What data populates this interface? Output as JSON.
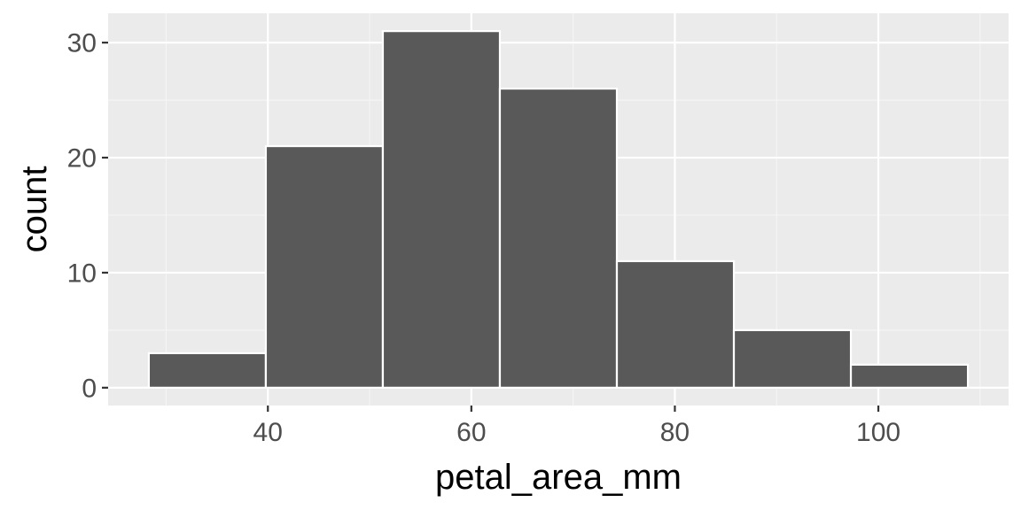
{
  "colors": {
    "panel_background": "#ebebeb",
    "grid_major": "#ffffff",
    "grid_minor": "#f5f5f5",
    "bar_fill": "#595959",
    "bar_outline": "#ffffff",
    "tick": "#333333"
  },
  "chart_data": {
    "type": "bar",
    "subtype": "histogram",
    "title": "",
    "xlabel": "petal_area_mm",
    "ylabel": "count",
    "bins": [
      {
        "x0": 28.3,
        "x1": 39.8,
        "count": 3
      },
      {
        "x0": 39.8,
        "x1": 51.3,
        "count": 21
      },
      {
        "x0": 51.3,
        "x1": 62.8,
        "count": 31
      },
      {
        "x0": 62.8,
        "x1": 74.3,
        "count": 26
      },
      {
        "x0": 74.3,
        "x1": 85.8,
        "count": 11
      },
      {
        "x0": 85.8,
        "x1": 97.3,
        "count": 5
      },
      {
        "x0": 97.3,
        "x1": 108.8,
        "count": 2
      }
    ],
    "xlim": [
      24.3,
      112.8
    ],
    "ylim": [
      -1.55,
      32.55
    ],
    "x_ticks": [
      40,
      60,
      80,
      100
    ],
    "x_tick_labels": [
      "40",
      "60",
      "80",
      "100"
    ],
    "x_minor_ticks": [
      30,
      50,
      70,
      90,
      110
    ],
    "y_ticks": [
      0,
      10,
      20,
      30
    ],
    "y_tick_labels": [
      "0",
      "10",
      "20",
      "30"
    ],
    "y_minor_ticks": [
      5,
      15,
      25
    ],
    "grid": true,
    "legend": "none"
  }
}
